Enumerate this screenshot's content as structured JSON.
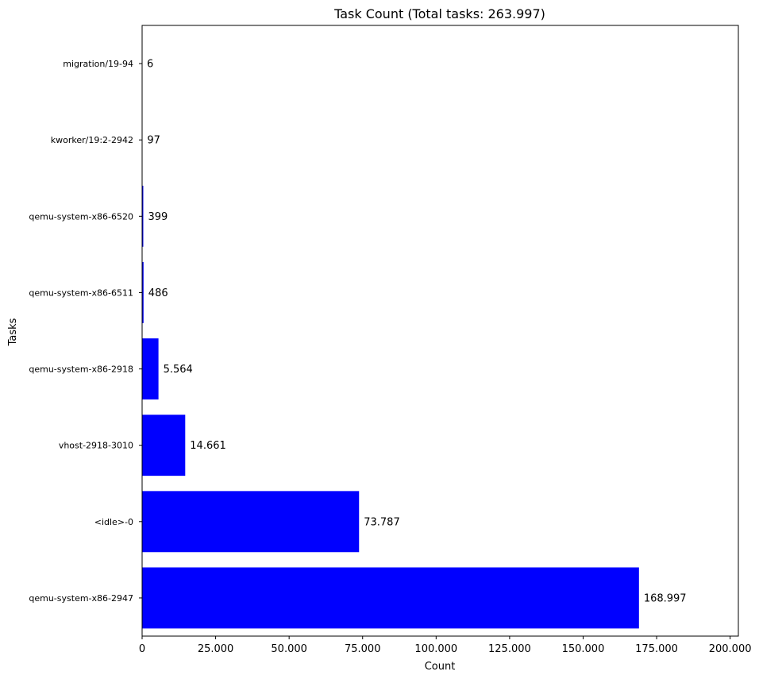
{
  "chart_data": {
    "type": "bar",
    "orientation": "horizontal",
    "title": "Task Count (Total tasks: 263.997)",
    "xlabel": "Count",
    "ylabel": "Tasks",
    "categories": [
      "qemu-system-x86-2947",
      "<idle>-0",
      "vhost-2918-3010",
      "qemu-system-x86-2918",
      "qemu-system-x86-6511",
      "qemu-system-x86-6520",
      "kworker/19:2-2942",
      "migration/19-94"
    ],
    "values": [
      168997,
      73787,
      14661,
      5564,
      486,
      399,
      97,
      6
    ],
    "data_labels": [
      "168.997",
      "73.787",
      "14.661",
      "5.564",
      "486",
      "399",
      "97",
      "6"
    ],
    "xlim": [
      0,
      202800
    ],
    "xticks": [
      0,
      25000,
      50000,
      75000,
      100000,
      125000,
      150000,
      175000,
      200000
    ],
    "xtick_labels": [
      "0",
      "25.000",
      "50.000",
      "75.000",
      "100.000",
      "125.000",
      "150.000",
      "175.000",
      "200.000"
    ],
    "bar_color": "#0000ff",
    "grid": false,
    "legend": false
  }
}
